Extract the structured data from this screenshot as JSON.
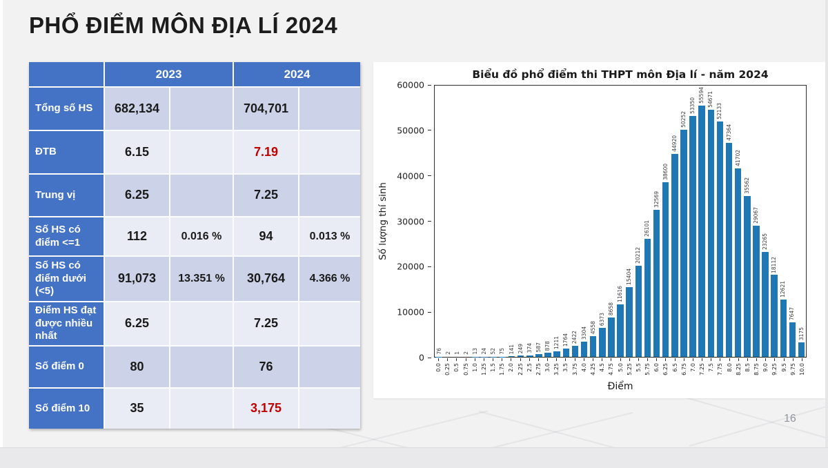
{
  "slide": {
    "title": "PHỔ ĐIỂM MÔN ĐỊA LÍ 2024",
    "page_number": "16"
  },
  "table": {
    "col_headers": [
      "2023",
      "2024"
    ],
    "rows": [
      {
        "label": "Tổng số HS",
        "v2023": "682,134",
        "p2023": "",
        "v2024": "704,701",
        "p2024": "",
        "red_2024": false
      },
      {
        "label": "ĐTB",
        "v2023": "6.15",
        "p2023": "",
        "v2024": "7.19",
        "p2024": "",
        "red_2024": true
      },
      {
        "label": "Trung vị",
        "v2023": "6.25",
        "p2023": "",
        "v2024": "7.25",
        "p2024": "",
        "red_2024": false
      },
      {
        "label": "Số HS có điểm <=1",
        "v2023": "112",
        "p2023": "0.016 %",
        "v2024": "94",
        "p2024": "0.013 %",
        "red_2024": false
      },
      {
        "label": "Số HS có điểm dưới (<5)",
        "v2023": "91,073",
        "p2023": "13.351 %",
        "v2024": "30,764",
        "p2024": "4.366 %",
        "red_2024": false
      },
      {
        "label": "Điểm HS đạt được nhiều nhất",
        "v2023": "6.25",
        "p2023": "",
        "v2024": "7.25",
        "p2024": "",
        "red_2024": false
      },
      {
        "label": "Số điểm 0",
        "v2023": "80",
        "p2023": "",
        "v2024": "76",
        "p2024": "",
        "red_2024": false
      },
      {
        "label": "Số điểm 10",
        "v2023": "35",
        "p2023": "",
        "v2024": "3,175",
        "p2024": "",
        "red_2024": true
      }
    ]
  },
  "chart_data": {
    "type": "bar",
    "title": "Biểu đồ phổ điểm thi THPT môn Địa lí - năm 2024",
    "xlabel": "Điểm",
    "ylabel": "Số lượng thí sinh",
    "ylim": [
      0,
      60000
    ],
    "yticks": [
      0,
      10000,
      20000,
      30000,
      40000,
      50000,
      60000
    ],
    "grid": false,
    "legend": "none",
    "bar_color": "#1f77b4",
    "categories": [
      "0.0",
      "0.25",
      "0.5",
      "0.75",
      "1.0",
      "1.25",
      "1.5",
      "1.75",
      "2.0",
      "2.25",
      "2.5",
      "2.75",
      "3.0",
      "3.25",
      "3.5",
      "3.75",
      "4.0",
      "4.25",
      "4.5",
      "4.75",
      "5.0",
      "5.25",
      "5.5",
      "5.75",
      "6.0",
      "6.25",
      "6.5",
      "6.75",
      "7.0",
      "7.25",
      "7.5",
      "7.75",
      "8.0",
      "8.25",
      "8.5",
      "8.75",
      "9.0",
      "9.25",
      "9.5",
      "9.75",
      "10.0"
    ],
    "values": [
      76,
      2,
      1,
      2,
      13,
      24,
      52,
      75,
      141,
      249,
      374,
      587,
      878,
      1211,
      1764,
      2422,
      3304,
      4558,
      6373,
      8658,
      11616,
      15404,
      20212,
      26101,
      32569,
      38600,
      44920,
      50252,
      53350,
      55594,
      54671,
      52133,
      47364,
      41702,
      35562,
      29067,
      23265,
      18112,
      12621,
      7647,
      3175
    ]
  },
  "colors": {
    "table_header_blue": "#4472c4",
    "band_dark": "#ccd3e8",
    "band_light": "#e9ebf5",
    "highlight_red": "#c00000",
    "bar_blue": "#1f77b4"
  }
}
